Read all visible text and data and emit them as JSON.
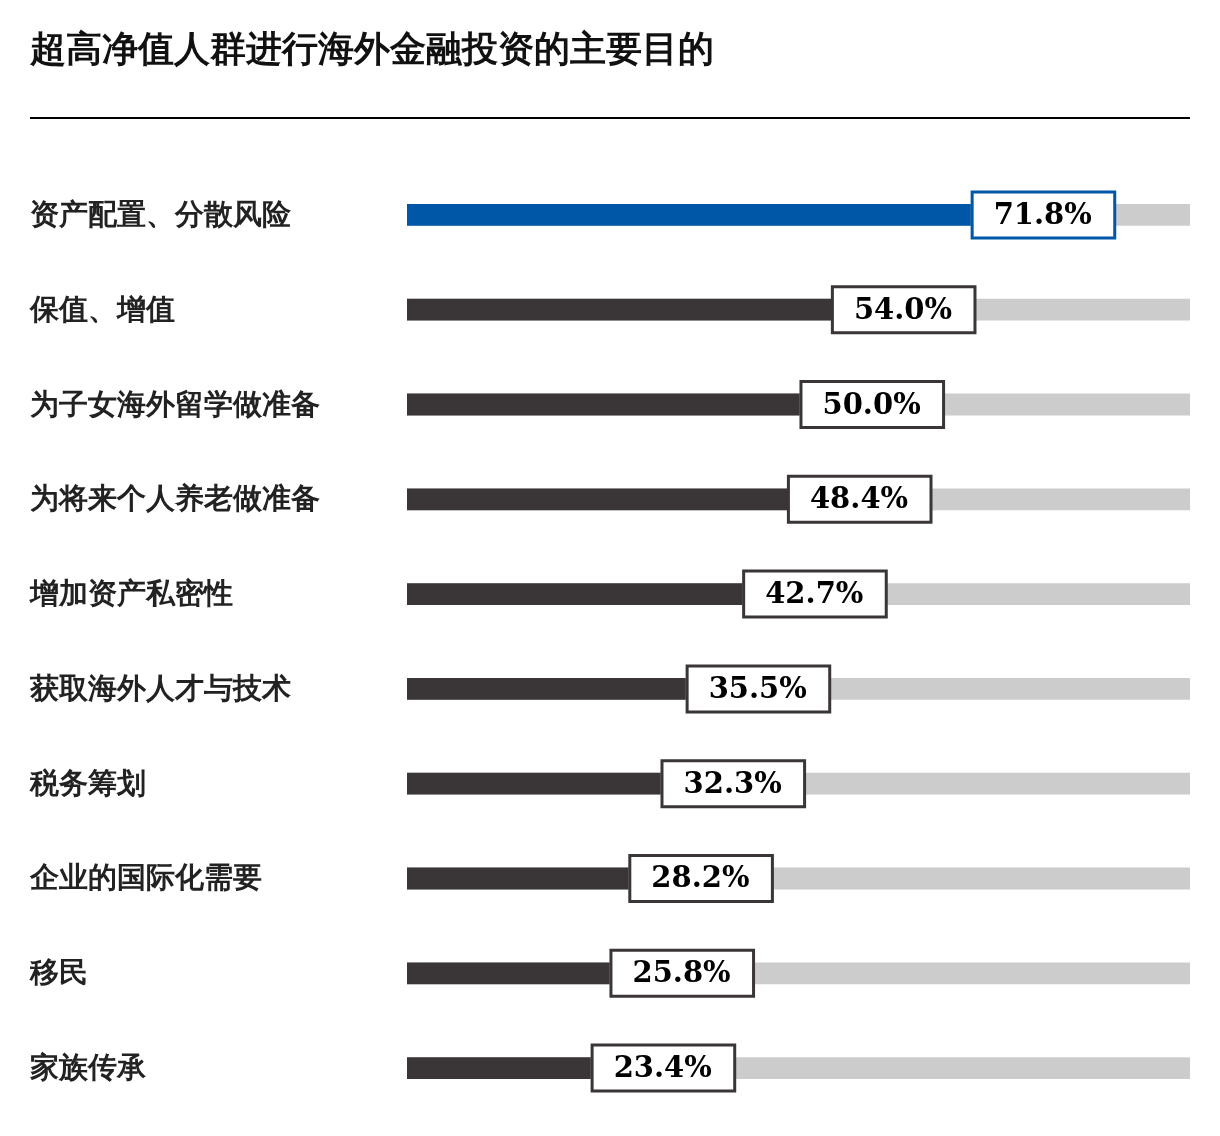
{
  "chart_data": {
    "type": "bar",
    "orientation": "horizontal",
    "title": "超高净值人群进行海外金融投资的主要目的",
    "categories": [
      "资产配置、分散风险",
      "保值、增值",
      "为子女海外留学做准备",
      "为将来个人养老做准备",
      "增加资产私密性",
      "获取海外人才与技术",
      "税务筹划",
      "企业的国际化需要",
      "移民",
      "家族传承"
    ],
    "values": [
      71.8,
      54.0,
      50.0,
      48.4,
      42.7,
      35.5,
      32.3,
      28.2,
      25.8,
      23.4
    ],
    "value_labels": [
      "71.8%",
      "54.0%",
      "50.0%",
      "48.4%",
      "42.7%",
      "35.5%",
      "32.3%",
      "28.2%",
      "25.8%",
      "23.4%"
    ],
    "colors": [
      "#0057a8",
      "#3a3536",
      "#3a3536",
      "#3a3536",
      "#3a3536",
      "#3a3536",
      "#3a3536",
      "#3a3536",
      "#3a3536",
      "#3a3536"
    ],
    "tick_labels": "y"
  }
}
